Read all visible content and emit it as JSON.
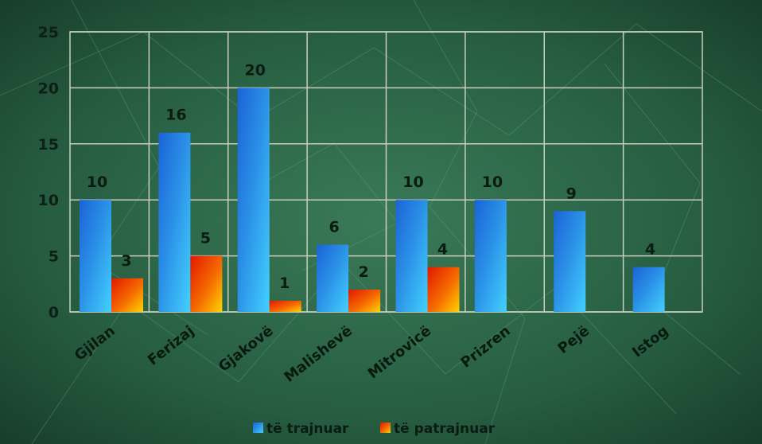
{
  "chart_data": {
    "type": "bar",
    "categories": [
      "Gjilan",
      "Ferizaj",
      "Gjakovë",
      "Malishevë",
      "Mitrovicë",
      "Prizren",
      "Pejë",
      "Istog"
    ],
    "series": [
      {
        "name": "të trajnuar",
        "values": [
          10,
          16,
          20,
          6,
          10,
          10,
          9,
          4
        ],
        "color": "#1e9ae6"
      },
      {
        "name": "të patrajnuar",
        "values": [
          3,
          5,
          1,
          2,
          4,
          null,
          null,
          null
        ],
        "color": "#f06010"
      }
    ],
    "ylim": [
      0,
      25
    ],
    "yticks": [
      "0",
      "5",
      "10",
      "15",
      "20",
      "25"
    ],
    "grid": true,
    "legend": "bottom",
    "title": "",
    "xlabel": "",
    "ylabel": ""
  },
  "colors": {
    "background": "#24553c",
    "grid": "#c9cfbd",
    "bar1_light": "#4fc8ff",
    "bar1_dark": "#0a5fcc",
    "bar2_light": "#ffd600",
    "bar2_dark": "#e01a00"
  }
}
